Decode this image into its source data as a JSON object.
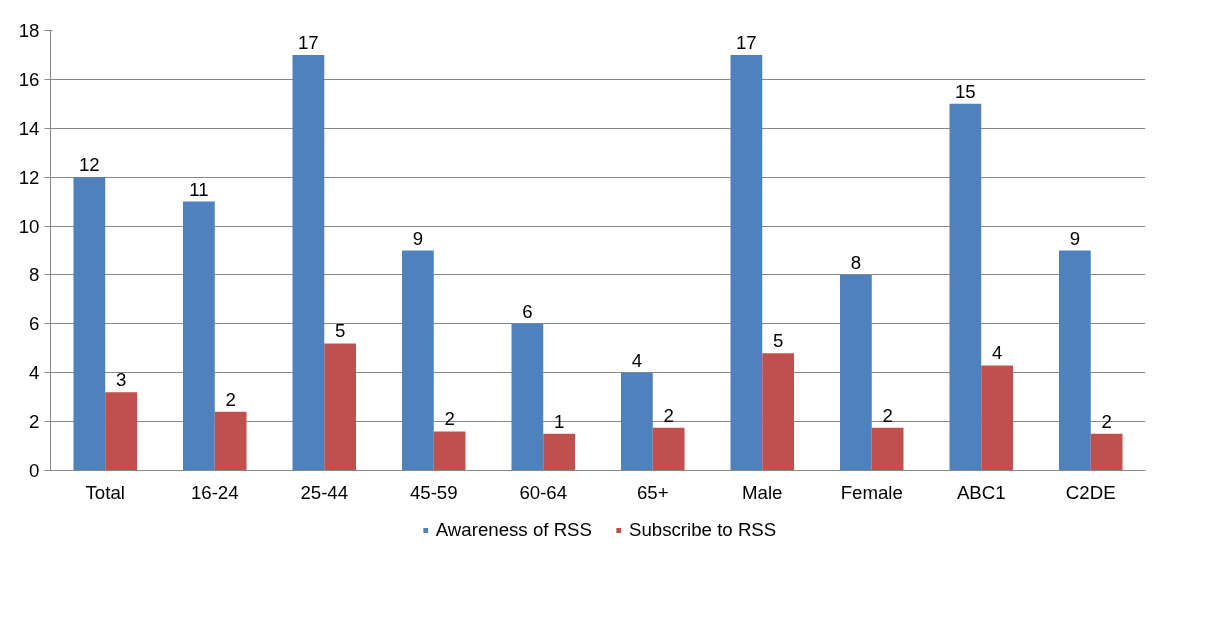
{
  "chart_data": {
    "type": "bar",
    "categories": [
      "Total",
      "16-24",
      "25-44",
      "45-59",
      "60-64",
      "65+",
      "Male",
      "Female",
      "ABC1",
      "C2DE"
    ],
    "series": [
      {
        "name": "Awareness of RSS",
        "color": "#4f81bd",
        "values": [
          12,
          11,
          17,
          9,
          6,
          4,
          17,
          8,
          15,
          9
        ],
        "value_labels": [
          "12",
          "11",
          "17",
          "9",
          "6",
          "4",
          "17",
          "8",
          "15",
          "9"
        ]
      },
      {
        "name": "Subscribe to RSS",
        "color": "#c0504d",
        "values": [
          3.2,
          2.4,
          5.2,
          1.6,
          1.5,
          1.75,
          4.8,
          1.75,
          4.3,
          1.5
        ],
        "value_labels": [
          "3",
          "2",
          "5",
          "2",
          "1",
          "2",
          "5",
          "2",
          "4",
          "2"
        ]
      }
    ],
    "ylim": [
      0,
      18
    ],
    "yticks": [
      0,
      2,
      4,
      6,
      8,
      10,
      12,
      14,
      16,
      18
    ],
    "grid": "y",
    "legend": "bottom"
  }
}
